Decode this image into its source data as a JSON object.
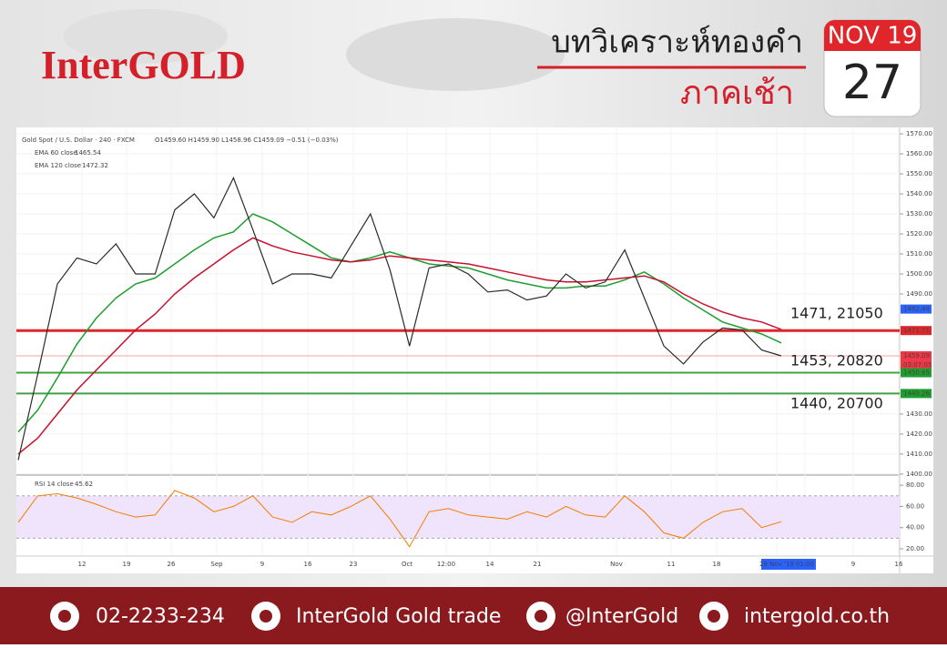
{
  "header": {
    "brand": "InterGOLD",
    "title": "บทวิเคราะห์ทองคำ",
    "subtitle": "ภาคเช้า",
    "calendar": {
      "month": "NOV 19",
      "day": "27"
    }
  },
  "chart_data": {
    "type": "line",
    "symbol": "Gold Spot / U.S. Dollar · 240 · FXCM",
    "ohlc": "O1459.60 H1459.90 L1458.96 C1459.09 −0.51 (−0.03%)",
    "price": {
      "color": "#2b2b2b",
      "values": [
        1407,
        1450,
        1495,
        1508,
        1505,
        1515,
        1500,
        1500,
        1532,
        1540,
        1528,
        1548,
        1522,
        1495,
        1500,
        1500,
        1498,
        1514,
        1530,
        1502,
        1464,
        1503,
        1505,
        1500,
        1491,
        1492,
        1487,
        1489,
        1500,
        1493,
        1496,
        1512,
        1488,
        1464,
        1455,
        1466,
        1473,
        1472,
        1462,
        1459.09
      ]
    },
    "series": [
      {
        "name": "EMA 60 close",
        "legend_value": "1465.54",
        "color": "#1e9e2e",
        "values": [
          1421,
          1432,
          1448,
          1465,
          1478,
          1488,
          1495,
          1498,
          1505,
          1512,
          1518,
          1521,
          1530,
          1526,
          1520,
          1514,
          1508,
          1506,
          1508,
          1511,
          1508,
          1505,
          1504,
          1503,
          1500,
          1497,
          1495,
          1493,
          1493,
          1494,
          1494,
          1497,
          1501,
          1495,
          1488,
          1482,
          1476,
          1473,
          1470,
          1465.54
        ]
      },
      {
        "name": "EMA 120 close",
        "legend_value": "1472.32",
        "color": "#c8102e",
        "values": [
          1410,
          1418,
          1430,
          1442,
          1452,
          1462,
          1472,
          1480,
          1490,
          1498,
          1505,
          1512,
          1518,
          1514,
          1511,
          1509,
          1507,
          1506,
          1507,
          1509,
          1508,
          1507,
          1506,
          1505,
          1503,
          1501,
          1499,
          1497,
          1496,
          1496,
          1497,
          1498,
          1499,
          1496,
          1490,
          1485,
          1481,
          1478,
          1476,
          1472.32
        ]
      }
    ],
    "ylim": [
      1399.5,
      1573.2
    ],
    "yticks": [
      {
        "value": 1570,
        "label": "1570.00"
      },
      {
        "value": 1560,
        "label": "1560.00"
      },
      {
        "value": 1550,
        "label": "1550.00"
      },
      {
        "value": 1540,
        "label": "1540.00"
      },
      {
        "value": 1530,
        "label": "1530.00"
      },
      {
        "value": 1520,
        "label": "1520.00"
      },
      {
        "value": 1510,
        "label": "1510.00"
      },
      {
        "value": 1500,
        "label": "1500.00"
      },
      {
        "value": 1490,
        "label": "1490.00"
      },
      {
        "value": 1430,
        "label": "1430.00"
      },
      {
        "value": 1420,
        "label": "1420.00"
      },
      {
        "value": 1410,
        "label": "1410.00"
      },
      {
        "value": 1400,
        "label": "1400.00"
      }
    ],
    "grid": true,
    "levels": [
      {
        "value": 1471.71,
        "color": "#e0262b",
        "width": 3
      },
      {
        "value": 1459.09,
        "color": "#f5a0a0",
        "width": 1
      },
      {
        "value": 1450.65,
        "color": "#43a047",
        "width": 2
      },
      {
        "value": 1440.26,
        "color": "#43a047",
        "width": 2
      }
    ],
    "price_badges": [
      {
        "value": 1482.44,
        "color": "#2962ff"
      },
      {
        "value": 1471.71,
        "color": "#e0262b"
      },
      {
        "value": 1459.09,
        "color": "#f23645"
      },
      {
        "value": 1450.65,
        "color": "#1e9e2e"
      },
      {
        "value": 1440.26,
        "color": "#1e9e2e"
      }
    ],
    "countdown": "03:07:05",
    "annotations": [
      "1471, 21050",
      "1453, 20820",
      "1440, 20700"
    ],
    "rsi": {
      "name": "RSI 14 close",
      "legend_value": "45.62",
      "color": "#f57c00",
      "band": [
        30,
        70
      ],
      "ylim": [
        14,
        87
      ],
      "yticks": [
        {
          "value": 80,
          "label": "80.00"
        },
        {
          "value": 60,
          "label": "60.00"
        },
        {
          "value": 40,
          "label": "40.00"
        },
        {
          "value": 20,
          "label": "20.00"
        }
      ],
      "values": [
        45,
        70,
        72,
        68,
        62,
        55,
        50,
        52,
        75,
        68,
        55,
        60,
        70,
        50,
        45,
        55,
        52,
        60,
        70,
        48,
        22,
        55,
        58,
        52,
        50,
        48,
        55,
        50,
        60,
        52,
        50,
        70,
        55,
        35,
        30,
        45,
        55,
        58,
        40,
        45.62
      ]
    },
    "x_labels": [
      "12",
      "19",
      "26",
      "Sep",
      "9",
      "16",
      "23",
      "Oct",
      "12:00",
      "14",
      "21",
      "Nov",
      "11",
      "18",
      "28 Nov '19",
      "01:00",
      "9",
      "16"
    ]
  },
  "footer": {
    "phone": "02-2233-234",
    "facebook": "InterGold Gold trade",
    "line": "@InterGold",
    "web": "intergold.co.th"
  }
}
